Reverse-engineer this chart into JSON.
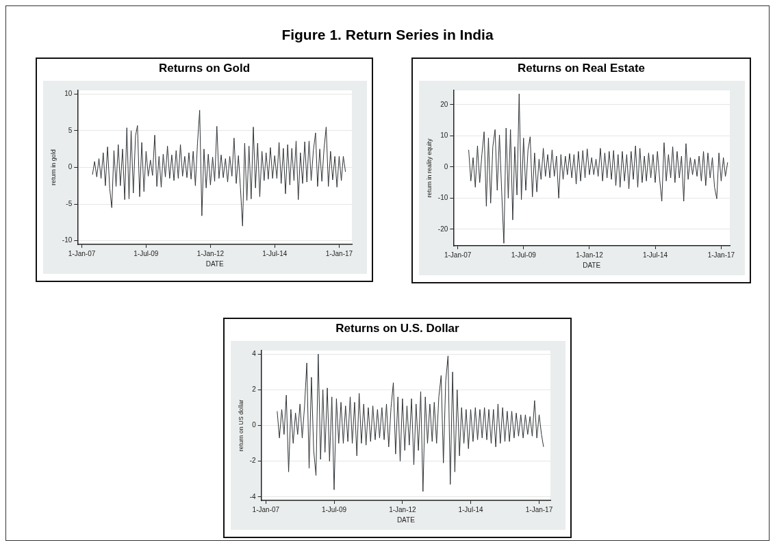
{
  "chart_data": [
    {
      "type": "other",
      "title": "Figure 1. Return Series in India"
    },
    {
      "type": "line",
      "title": "Returns on Gold",
      "xlabel": "DATE",
      "ylabel": "return in gold",
      "grid": "y",
      "x": [
        "2007-06",
        "2007-07",
        "2007-08",
        "2007-09",
        "2007-10",
        "2007-11",
        "2007-12",
        "2008-01",
        "2008-02",
        "2008-03",
        "2008-04",
        "2008-05",
        "2008-06",
        "2008-07",
        "2008-08",
        "2008-09",
        "2008-10",
        "2008-11",
        "2008-12",
        "2009-01",
        "2009-02",
        "2009-03",
        "2009-04",
        "2009-05",
        "2009-06",
        "2009-07",
        "2009-08",
        "2009-09",
        "2009-10",
        "2009-11",
        "2009-12",
        "2010-01",
        "2010-02",
        "2010-03",
        "2010-04",
        "2010-05",
        "2010-06",
        "2010-07",
        "2010-08",
        "2010-09",
        "2010-10",
        "2010-11",
        "2010-12",
        "2011-01",
        "2011-02",
        "2011-03",
        "2011-04",
        "2011-05",
        "2011-06",
        "2011-07",
        "2011-08",
        "2011-09",
        "2011-10",
        "2011-11",
        "2011-12",
        "2012-01",
        "2012-02",
        "2012-03",
        "2012-04",
        "2012-05",
        "2012-06",
        "2012-07",
        "2012-08",
        "2012-09",
        "2012-10",
        "2012-11",
        "2012-12",
        "2013-01",
        "2013-02",
        "2013-03",
        "2013-04",
        "2013-05",
        "2013-06",
        "2013-07",
        "2013-08",
        "2013-09",
        "2013-10",
        "2013-11",
        "2013-12",
        "2014-01",
        "2014-02",
        "2014-03",
        "2014-04",
        "2014-05",
        "2014-06",
        "2014-07",
        "2014-08",
        "2014-09",
        "2014-10",
        "2014-11",
        "2014-12",
        "2015-01",
        "2015-02",
        "2015-03",
        "2015-04",
        "2015-05",
        "2015-06",
        "2015-07",
        "2015-08",
        "2015-09",
        "2015-10",
        "2015-11",
        "2015-12",
        "2016-01",
        "2016-02",
        "2016-03",
        "2016-04",
        "2016-05",
        "2016-06",
        "2016-07",
        "2016-08",
        "2016-09",
        "2016-10",
        "2016-11",
        "2016-12",
        "2017-01",
        "2017-02",
        "2017-03",
        "2017-04"
      ],
      "series": [
        {
          "color": "#2f3336",
          "values": [
            -1.0,
            0.8,
            -1.3,
            1.2,
            -1.5,
            2.0,
            -2.5,
            2.8,
            -2.9,
            -5.5,
            2.3,
            -2.6,
            3.1,
            -2.5,
            2.5,
            -4.4,
            5.4,
            -4.3,
            5.0,
            -3.5,
            4.3,
            5.7,
            -4.0,
            3.4,
            -3.3,
            2.2,
            -1.2,
            1.0,
            -1.1,
            4.4,
            -2.6,
            1.5,
            -2.7,
            1.8,
            -1.3,
            2.9,
            -1.5,
            1.7,
            -1.8,
            2.3,
            -1.5,
            3.1,
            -1.2,
            1.5,
            -1.4,
            2.0,
            -1.6,
            2.2,
            -2.5,
            3.3,
            7.8,
            -6.6,
            2.5,
            -2.8,
            1.8,
            -2.4,
            1.4,
            -1.9,
            5.6,
            -1.5,
            1.7,
            -1.4,
            1.2,
            -2.0,
            1.5,
            -1.2,
            4.0,
            -2.2,
            1.6,
            -2.7,
            -8.0,
            3.3,
            -4.5,
            2.9,
            -4.3,
            5.5,
            -2.8,
            3.3,
            -4.0,
            2.2,
            -1.8,
            2.0,
            -1.6,
            2.7,
            -1.5,
            1.6,
            -1.5,
            3.4,
            -2.2,
            2.6,
            -3.6,
            3.1,
            -2.4,
            2.6,
            -1.8,
            3.6,
            -4.4,
            2.0,
            -2.2,
            3.5,
            -2.0,
            3.6,
            -1.8,
            2.3,
            4.7,
            -2.6,
            2.5,
            -1.9,
            2.6,
            5.5,
            -2.6,
            2.2,
            -1.7,
            1.5,
            -2.7,
            1.5,
            -1.8,
            1.5,
            -0.6
          ]
        }
      ],
      "xlim": [
        "2006-11-01",
        "2017-07-01"
      ],
      "xticks": [
        {
          "value": "2007-01-01",
          "label": "1-Jan-07"
        },
        {
          "value": "2009-07-01",
          "label": "1-Jul-09"
        },
        {
          "value": "2012-01-01",
          "label": "1-Jan-12"
        },
        {
          "value": "2014-07-01",
          "label": "1-Jul-14"
        },
        {
          "value": "2017-01-01",
          "label": "1-Jan-17"
        }
      ],
      "ylim": [
        -10.5,
        10.5
      ],
      "yticks": [
        -10,
        -5,
        0,
        5,
        10
      ]
    },
    {
      "type": "line",
      "title": "Returns on Real Estate",
      "xlabel": "DATE",
      "ylabel": "return in reality equity",
      "grid": "y",
      "x": [
        "2007-06",
        "2007-07",
        "2007-08",
        "2007-09",
        "2007-10",
        "2007-11",
        "2007-12",
        "2008-01",
        "2008-02",
        "2008-03",
        "2008-04",
        "2008-05",
        "2008-06",
        "2008-07",
        "2008-08",
        "2008-09",
        "2008-10",
        "2008-11",
        "2008-12",
        "2009-01",
        "2009-02",
        "2009-03",
        "2009-04",
        "2009-05",
        "2009-06",
        "2009-07",
        "2009-08",
        "2009-09",
        "2009-10",
        "2009-11",
        "2009-12",
        "2010-01",
        "2010-02",
        "2010-03",
        "2010-04",
        "2010-05",
        "2010-06",
        "2010-07",
        "2010-08",
        "2010-09",
        "2010-10",
        "2010-11",
        "2010-12",
        "2011-01",
        "2011-02",
        "2011-03",
        "2011-04",
        "2011-05",
        "2011-06",
        "2011-07",
        "2011-08",
        "2011-09",
        "2011-10",
        "2011-11",
        "2011-12",
        "2012-01",
        "2012-02",
        "2012-03",
        "2012-04",
        "2012-05",
        "2012-06",
        "2012-07",
        "2012-08",
        "2012-09",
        "2012-10",
        "2012-11",
        "2012-12",
        "2013-01",
        "2013-02",
        "2013-03",
        "2013-04",
        "2013-05",
        "2013-06",
        "2013-07",
        "2013-08",
        "2013-09",
        "2013-10",
        "2013-11",
        "2013-12",
        "2014-01",
        "2014-02",
        "2014-03",
        "2014-04",
        "2014-05",
        "2014-06",
        "2014-07",
        "2014-08",
        "2014-09",
        "2014-10",
        "2014-11",
        "2014-12",
        "2015-01",
        "2015-02",
        "2015-03",
        "2015-04",
        "2015-05",
        "2015-06",
        "2015-07",
        "2015-08",
        "2015-09",
        "2015-10",
        "2015-11",
        "2015-12",
        "2016-01",
        "2016-02",
        "2016-03",
        "2016-04",
        "2016-05",
        "2016-06",
        "2016-07",
        "2016-08",
        "2016-09",
        "2016-10",
        "2016-11",
        "2016-12",
        "2017-01",
        "2017-02",
        "2017-03",
        "2017-04"
      ],
      "series": [
        {
          "color": "#2f3336",
          "values": [
            5.5,
            -4.5,
            3.0,
            -6.5,
            6.8,
            -5.0,
            4.0,
            11.3,
            -12.6,
            9.3,
            -11.6,
            6.5,
            12.0,
            -7.5,
            10.3,
            -8.0,
            -24.5,
            12.5,
            -10.0,
            12.0,
            -17.0,
            6.5,
            -9.0,
            23.5,
            -10.5,
            9.3,
            -7.5,
            5.5,
            9.7,
            -9.6,
            4.5,
            -8.0,
            2.5,
            -4.0,
            6.0,
            -3.0,
            4.0,
            -3.5,
            5.5,
            -3.0,
            3.5,
            -10.0,
            4.0,
            -4.0,
            3.5,
            -2.5,
            4.3,
            -3.5,
            4.0,
            -5.5,
            5.0,
            -4.5,
            5.3,
            -3.5,
            5.8,
            -2.5,
            3.0,
            -2.5,
            2.5,
            -3.0,
            6.0,
            -4.5,
            4.5,
            -3.5,
            5.0,
            -4.0,
            5.3,
            -6.0,
            4.0,
            -6.5,
            5.0,
            -4.5,
            4.0,
            -7.0,
            5.0,
            -4.0,
            6.8,
            -6.5,
            6.0,
            -5.0,
            3.5,
            -4.5,
            4.5,
            -3.5,
            4.0,
            -5.0,
            5.0,
            -4.0,
            -11.0,
            7.8,
            -4.5,
            4.0,
            -3.5,
            6.5,
            -5.0,
            5.0,
            -3.5,
            3.5,
            -11.0,
            7.5,
            -4.0,
            3.0,
            -2.5,
            2.5,
            -3.0,
            3.5,
            -4.5,
            5.0,
            -6.0,
            4.5,
            -3.5,
            3.0,
            -6.5,
            -10.2,
            4.5,
            -4.5,
            3.0,
            -3.0,
            1.5
          ]
        }
      ],
      "xlim": [
        "2006-11-01",
        "2017-05-01"
      ],
      "xticks": [
        {
          "value": "2007-01-01",
          "label": "1-Jan-07"
        },
        {
          "value": "2009-07-01",
          "label": "1-Jul-09"
        },
        {
          "value": "2012-01-01",
          "label": "1-Jan-12"
        },
        {
          "value": "2014-07-01",
          "label": "1-Jul-14"
        },
        {
          "value": "2017-01-01",
          "label": "1-Jan-17"
        }
      ],
      "ylim": [
        -25.3,
        24.6
      ],
      "yticks": [
        -20,
        -10,
        0,
        10,
        20
      ]
    },
    {
      "type": "line",
      "title": "Returns on U.S. Dollar",
      "xlabel": "DATE",
      "ylabel": "return on US dollar",
      "grid": "y",
      "x": [
        "2007-06",
        "2007-07",
        "2007-08",
        "2007-09",
        "2007-10",
        "2007-11",
        "2007-12",
        "2008-01",
        "2008-02",
        "2008-03",
        "2008-04",
        "2008-05",
        "2008-06",
        "2008-07",
        "2008-08",
        "2008-09",
        "2008-10",
        "2008-11",
        "2008-12",
        "2009-01",
        "2009-02",
        "2009-03",
        "2009-04",
        "2009-05",
        "2009-06",
        "2009-07",
        "2009-08",
        "2009-09",
        "2009-10",
        "2009-11",
        "2009-12",
        "2010-01",
        "2010-02",
        "2010-03",
        "2010-04",
        "2010-05",
        "2010-06",
        "2010-07",
        "2010-08",
        "2010-09",
        "2010-10",
        "2010-11",
        "2010-12",
        "2011-01",
        "2011-02",
        "2011-03",
        "2011-04",
        "2011-05",
        "2011-06",
        "2011-07",
        "2011-08",
        "2011-09",
        "2011-10",
        "2011-11",
        "2011-12",
        "2012-01",
        "2012-02",
        "2012-03",
        "2012-04",
        "2012-05",
        "2012-06",
        "2012-07",
        "2012-08",
        "2012-09",
        "2012-10",
        "2012-11",
        "2012-12",
        "2013-01",
        "2013-02",
        "2013-03",
        "2013-04",
        "2013-05",
        "2013-06",
        "2013-07",
        "2013-08",
        "2013-09",
        "2013-10",
        "2013-11",
        "2013-12",
        "2014-01",
        "2014-02",
        "2014-03",
        "2014-04",
        "2014-05",
        "2014-06",
        "2014-07",
        "2014-08",
        "2014-09",
        "2014-10",
        "2014-11",
        "2014-12",
        "2015-01",
        "2015-02",
        "2015-03",
        "2015-04",
        "2015-05",
        "2015-06",
        "2015-07",
        "2015-08",
        "2015-09",
        "2015-10",
        "2015-11",
        "2015-12",
        "2016-01",
        "2016-02",
        "2016-03",
        "2016-04",
        "2016-05",
        "2016-06",
        "2016-07",
        "2016-08",
        "2016-09",
        "2016-10",
        "2016-11",
        "2016-12",
        "2017-01",
        "2017-02",
        "2017-03"
      ],
      "series": [
        {
          "color": "#2f3336",
          "values": [
            0.8,
            -0.7,
            0.9,
            -0.5,
            1.7,
            -2.6,
            0.9,
            -1.0,
            0.7,
            -0.5,
            1.2,
            -0.7,
            1.1,
            3.5,
            -2.4,
            2.7,
            -1.4,
            -2.8,
            4.0,
            -1.9,
            2.0,
            -1.5,
            2.1,
            -2.0,
            1.6,
            -3.6,
            1.5,
            -1.0,
            1.3,
            -1.0,
            1.1,
            -0.9,
            1.6,
            -1.0,
            1.3,
            -1.7,
            1.8,
            -1.0,
            1.2,
            -1.1,
            1.0,
            -0.9,
            1.1,
            -0.8,
            0.9,
            -0.7,
            1.0,
            -0.8,
            1.2,
            -1.2,
            1.0,
            2.4,
            -1.6,
            1.6,
            -2.0,
            1.5,
            -1.4,
            1.1,
            -1.1,
            1.5,
            -2.2,
            1.2,
            -1.4,
            1.9,
            -3.7,
            1.6,
            -1.0,
            1.2,
            -0.9,
            1.3,
            -1.0,
            1.6,
            2.8,
            -2.1,
            2.5,
            3.9,
            -3.3,
            3.0,
            -2.6,
            2.0,
            -1.7,
            1.0,
            -1.0,
            0.9,
            -1.3,
            0.9,
            -0.9,
            1.0,
            -0.8,
            0.9,
            -0.7,
            1.0,
            -0.8,
            0.9,
            -1.0,
            0.9,
            -1.2,
            1.2,
            -1.0,
            1.0,
            -0.9,
            0.8,
            -0.9,
            0.8,
            -0.7,
            0.7,
            -0.6,
            0.6,
            -0.7,
            0.6,
            -0.5,
            0.5,
            -0.6,
            1.4,
            -0.7,
            0.6,
            -0.5,
            -1.2
          ]
        }
      ],
      "xlim": [
        "2006-11-01",
        "2017-06-01"
      ],
      "xticks": [
        {
          "value": "2007-01-01",
          "label": "1-Jan-07"
        },
        {
          "value": "2009-07-01",
          "label": "1-Jul-09"
        },
        {
          "value": "2012-01-01",
          "label": "1-Jan-12"
        },
        {
          "value": "2014-07-01",
          "label": "1-Jul-14"
        },
        {
          "value": "2017-01-01",
          "label": "1-Jan-17"
        }
      ],
      "ylim": [
        -4.2,
        4.2
      ],
      "yticks": [
        -4,
        -2,
        0,
        2,
        4
      ]
    }
  ]
}
